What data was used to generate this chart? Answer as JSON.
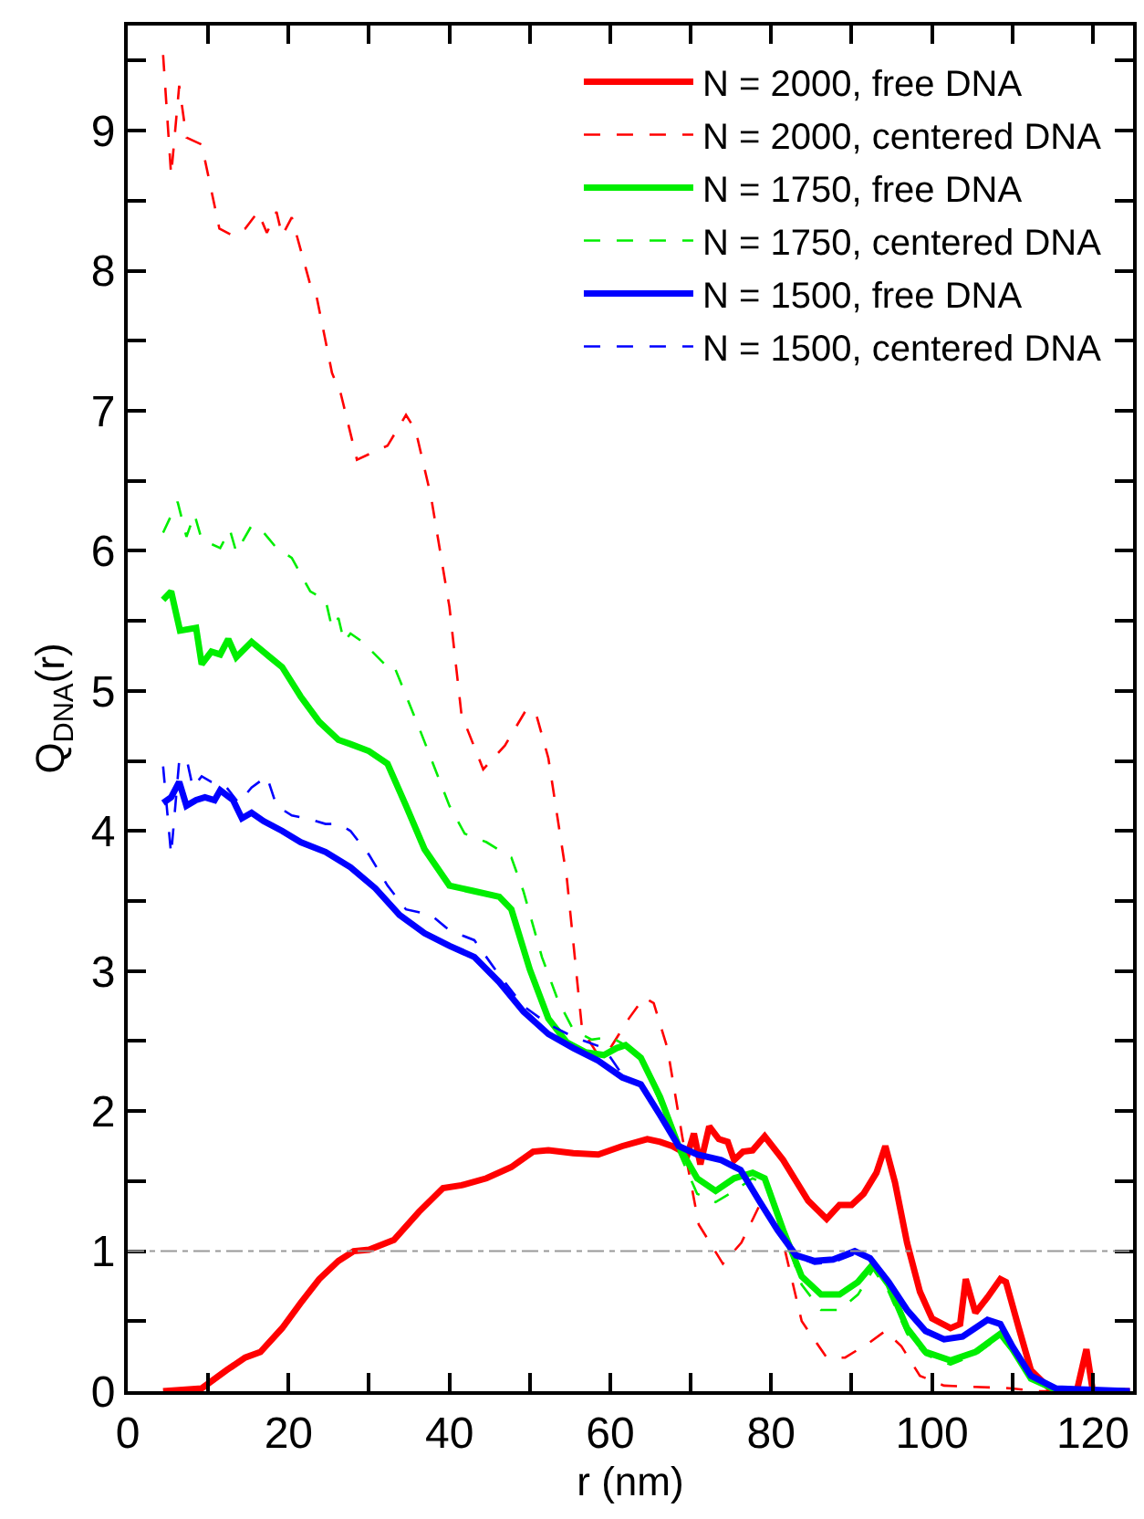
{
  "chart_data": {
    "type": "line",
    "xlabel": "r (nm)",
    "ylabel": "Q$_{DNA}$(r)",
    "xlim": [
      0,
      125
    ],
    "ylim": [
      0,
      9.75
    ],
    "xticks": [
      0,
      {
        "value": 10,
        "label": null
      },
      20,
      {
        "value": 30,
        "label": null
      },
      40,
      {
        "value": 50,
        "label": null
      },
      60,
      {
        "value": 70,
        "label": null
      },
      80,
      {
        "value": 90,
        "label": null
      },
      100,
      {
        "value": 110,
        "label": null
      },
      120
    ],
    "yticks": [
      0,
      {
        "value": 0.5,
        "label": null
      },
      1,
      {
        "value": 1.5,
        "label": null
      },
      2,
      {
        "value": 2.5,
        "label": null
      },
      3,
      {
        "value": 3.5,
        "label": null
      },
      4,
      {
        "value": 4.5,
        "label": null
      },
      5,
      {
        "value": 5.5,
        "label": null
      },
      6,
      {
        "value": 6.5,
        "label": null
      },
      7,
      {
        "value": 7.5,
        "label": null
      },
      8,
      {
        "value": 8.5,
        "label": null
      },
      9,
      {
        "value": 9.5,
        "label": null
      }
    ],
    "legend": "top right",
    "marker": "none",
    "ref_lines": [
      {
        "axis": "y",
        "value": 1,
        "color": "#999999",
        "line_style": "dashdot"
      }
    ],
    "series": [
      {
        "name": "N = 2000, free DNA",
        "color": "#ff0000",
        "line_style": "solid",
        "x": [
          4.4,
          9.2,
          12.3,
          14.6,
          16.5,
          19.2,
          21.5,
          23.8,
          26.2,
          28.1,
          30,
          33.1,
          36.2,
          39.2,
          41.5,
          44.6,
          47.7,
          50.4,
          52.3,
          55.4,
          58.5,
          61.5,
          64.6,
          66.2,
          67.7,
          69.6,
          70.4,
          71.2,
          72.3,
          73.5,
          74.6,
          75.4,
          76.5,
          77.7,
          79.2,
          81.5,
          84.6,
          86.9,
          87.7,
          88.5,
          90,
          91.5,
          93.1,
          94.2,
          95.4,
          96.9,
          98.5,
          100,
          102.3,
          103.5,
          104.2,
          105.4,
          106.9,
          108.5,
          109.2,
          110.8,
          112.3,
          114.6,
          118,
          119.2,
          120,
          124.6
        ],
        "values": [
          0,
          0.02,
          0.15,
          0.24,
          0.28,
          0.45,
          0.63,
          0.8,
          0.93,
          1.0,
          1.01,
          1.08,
          1.28,
          1.45,
          1.47,
          1.52,
          1.6,
          1.71,
          1.72,
          1.7,
          1.69,
          1.75,
          1.8,
          1.78,
          1.75,
          1.69,
          1.84,
          1.62,
          1.89,
          1.8,
          1.78,
          1.65,
          1.71,
          1.72,
          1.82,
          1.65,
          1.36,
          1.23,
          1.28,
          1.33,
          1.33,
          1.41,
          1.56,
          1.75,
          1.49,
          1.06,
          0.71,
          0.52,
          0.45,
          0.48,
          0.8,
          0.56,
          0.67,
          0.8,
          0.78,
          0.45,
          0.15,
          0.02,
          0,
          0.3,
          0,
          0
        ]
      },
      {
        "name": "N = 2000, centered DNA",
        "color": "#ff0000",
        "line_style": "dashed",
        "x": [
          4.4,
          5.4,
          6.4,
          7.3,
          9.2,
          11.4,
          13.1,
          14.6,
          16.2,
          17.3,
          18.5,
          19.2,
          20.4,
          22.7,
          23.5,
          25.4,
          26.5,
          28.5,
          30,
          32.3,
          34.6,
          35.8,
          37.7,
          40,
          41.5,
          44.2,
          46.9,
          49.6,
          50.8,
          52.3,
          54.6,
          56.5,
          58.5,
          60,
          62.3,
          64.2,
          65.4,
          67.1,
          69,
          71,
          74,
          76.3,
          78.5,
          80,
          81.5,
          83.8,
          86.9,
          89.2,
          92.3,
          94.2,
          96.2,
          98.5,
          101.5,
          110,
          113,
          119,
          124
        ],
        "values": [
          9.54,
          8.68,
          9.32,
          8.95,
          8.9,
          8.3,
          8.25,
          8.3,
          8.42,
          8.27,
          8.42,
          8.25,
          8.38,
          7.9,
          7.81,
          7.27,
          7.12,
          6.65,
          6.69,
          6.75,
          6.97,
          6.86,
          6.39,
          5.6,
          4.83,
          4.44,
          4.61,
          4.87,
          4.83,
          4.52,
          3.66,
          2.58,
          2.4,
          2.45,
          2.66,
          2.81,
          2.77,
          2.45,
          1.8,
          1.19,
          0.91,
          1.06,
          1.32,
          1.43,
          1.06,
          0.5,
          0.24,
          0.24,
          0.35,
          0.43,
          0.32,
          0.11,
          0.04,
          0.02,
          0,
          0,
          0
        ]
      },
      {
        "name": "N = 1750, free DNA",
        "color": "#00ee00",
        "line_style": "solid",
        "x": [
          4.4,
          5.4,
          6.5,
          8.5,
          9.2,
          10.4,
          11.5,
          12.5,
          13.5,
          15.4,
          17.7,
          19.2,
          21.5,
          23.8,
          26.2,
          27.7,
          30,
          32.3,
          34.6,
          36.9,
          40,
          43.1,
          46.2,
          47.7,
          50,
          52.3,
          54.6,
          56.9,
          59.2,
          60.8,
          61.9,
          63.8,
          66.2,
          68.5,
          70.8,
          73.1,
          75.4,
          77.7,
          79.2,
          81.5,
          83.8,
          86.2,
          88.5,
          90.8,
          92.7,
          94.6,
          96.9,
          99.2,
          102.3,
          105.4,
          108.5,
          110,
          112.3,
          115.4,
          124
        ],
        "values": [
          5.65,
          5.71,
          5.43,
          5.45,
          5.19,
          5.28,
          5.26,
          5.37,
          5.24,
          5.35,
          5.24,
          5.17,
          4.96,
          4.78,
          4.65,
          4.62,
          4.57,
          4.48,
          4.18,
          3.87,
          3.61,
          3.57,
          3.53,
          3.44,
          3.01,
          2.66,
          2.49,
          2.42,
          2.4,
          2.45,
          2.47,
          2.38,
          2.1,
          1.75,
          1.52,
          1.43,
          1.52,
          1.56,
          1.52,
          1.15,
          0.82,
          0.69,
          0.69,
          0.78,
          0.91,
          0.76,
          0.45,
          0.28,
          0.22,
          0.28,
          0.41,
          0.3,
          0.09,
          0.01,
          0
        ]
      },
      {
        "name": "N = 1750, centered DNA",
        "color": "#00ee00",
        "line_style": "dashed",
        "x": [
          4.4,
          6.2,
          7.3,
          8.3,
          9.2,
          11.5,
          12.7,
          13.5,
          15.4,
          16.9,
          18.5,
          20.4,
          22.7,
          24.6,
          25.4,
          26.2,
          26.9,
          27.7,
          29.2,
          32.3,
          33.1,
          36.2,
          40,
          41.9,
          44.6,
          47.7,
          49.2,
          51.5,
          53.5,
          55.4,
          57.7,
          60,
          61.9,
          63.8,
          66.2,
          68.5,
          70.8,
          73.1,
          75.4,
          77.7,
          79.2,
          81.5,
          83.8,
          86.2,
          88.5,
          90.8,
          92.7,
          94.6,
          96.9,
          99.2,
          102.3,
          105.4,
          108.5,
          110,
          112.3,
          115.4,
          124
        ],
        "values": [
          6.13,
          6.35,
          6.1,
          6.26,
          6.08,
          6.02,
          6.15,
          5.99,
          6.18,
          6.13,
          6.02,
          5.95,
          5.71,
          5.65,
          5.45,
          5.52,
          5.35,
          5.41,
          5.35,
          5.17,
          5.18,
          4.74,
          4.18,
          3.98,
          3.92,
          3.81,
          3.57,
          3.1,
          2.79,
          2.58,
          2.51,
          2.53,
          2.47,
          2.38,
          2.06,
          1.71,
          1.41,
          1.35,
          1.43,
          1.52,
          1.48,
          1.15,
          0.76,
          0.58,
          0.58,
          0.69,
          0.87,
          0.71,
          0.41,
          0.26,
          0.19,
          0.26,
          0.39,
          0.28,
          0.09,
          0.01,
          0
        ]
      },
      {
        "name": "N = 1500, free DNA",
        "color": "#0000ff",
        "line_style": "solid",
        "x": [
          4.4,
          5.4,
          6.4,
          7.3,
          8.5,
          9.6,
          10.8,
          11.5,
          13.1,
          14.2,
          15.4,
          16.9,
          19.2,
          21.5,
          24.6,
          27.7,
          30.8,
          33.8,
          36.9,
          40,
          43.1,
          46.2,
          49.2,
          52.3,
          55.4,
          58.5,
          61.5,
          63.8,
          66.2,
          68.5,
          70.8,
          73.8,
          76.2,
          78.5,
          80.8,
          83.1,
          85.4,
          87.7,
          90.4,
          92.3,
          94.6,
          96.9,
          99.2,
          101.5,
          103.8,
          106.9,
          108.5,
          110,
          112.3,
          115.4,
          124.6
        ],
        "values": [
          4.2,
          4.24,
          4.35,
          4.18,
          4.22,
          4.24,
          4.22,
          4.29,
          4.22,
          4.09,
          4.13,
          4.07,
          4.0,
          3.92,
          3.85,
          3.74,
          3.59,
          3.4,
          3.27,
          3.18,
          3.1,
          2.92,
          2.71,
          2.55,
          2.45,
          2.36,
          2.24,
          2.19,
          1.97,
          1.75,
          1.69,
          1.65,
          1.58,
          1.36,
          1.15,
          0.97,
          0.93,
          0.94,
          1.0,
          0.95,
          0.78,
          0.58,
          0.43,
          0.37,
          0.39,
          0.51,
          0.48,
          0.32,
          0.11,
          0.02,
          0
        ]
      },
      {
        "name": "N = 1500, centered DNA",
        "color": "#0000ff",
        "line_style": "dashed",
        "x": [
          4.4,
          5.4,
          6.4,
          7.3,
          8.1,
          9.2,
          10.4,
          12.3,
          13.8,
          15.4,
          17.3,
          18.5,
          20.4,
          22.3,
          24.6,
          26.2,
          27.7,
          30,
          32.3,
          34.6,
          37.7,
          40,
          43.1,
          46.2,
          49.2,
          52.3,
          55.4,
          59.2,
          61.5,
          63.8,
          66.2,
          68.5,
          70.8,
          73.8,
          76.2,
          78.5,
          80.8,
          83.1,
          85.4,
          87.7,
          90.4,
          92.3,
          94.6,
          96.9,
          99.2,
          101.5,
          103.8,
          106.9,
          108.5,
          110,
          112.3,
          115.4,
          124.6
        ],
        "values": [
          4.46,
          3.83,
          4.5,
          4.52,
          4.31,
          4.39,
          4.35,
          4.31,
          4.2,
          4.31,
          4.39,
          4.18,
          4.11,
          4.09,
          4.05,
          4.05,
          4.0,
          3.83,
          3.61,
          3.44,
          3.4,
          3.29,
          3.22,
          2.97,
          2.75,
          2.62,
          2.53,
          2.45,
          2.26,
          2.19,
          1.97,
          1.75,
          1.69,
          1.65,
          1.58,
          1.36,
          1.15,
          0.96,
          0.91,
          0.92,
          0.98,
          0.94,
          0.77,
          0.57,
          0.42,
          0.36,
          0.38,
          0.5,
          0.47,
          0.31,
          0.1,
          0.02,
          0
        ]
      }
    ]
  }
}
